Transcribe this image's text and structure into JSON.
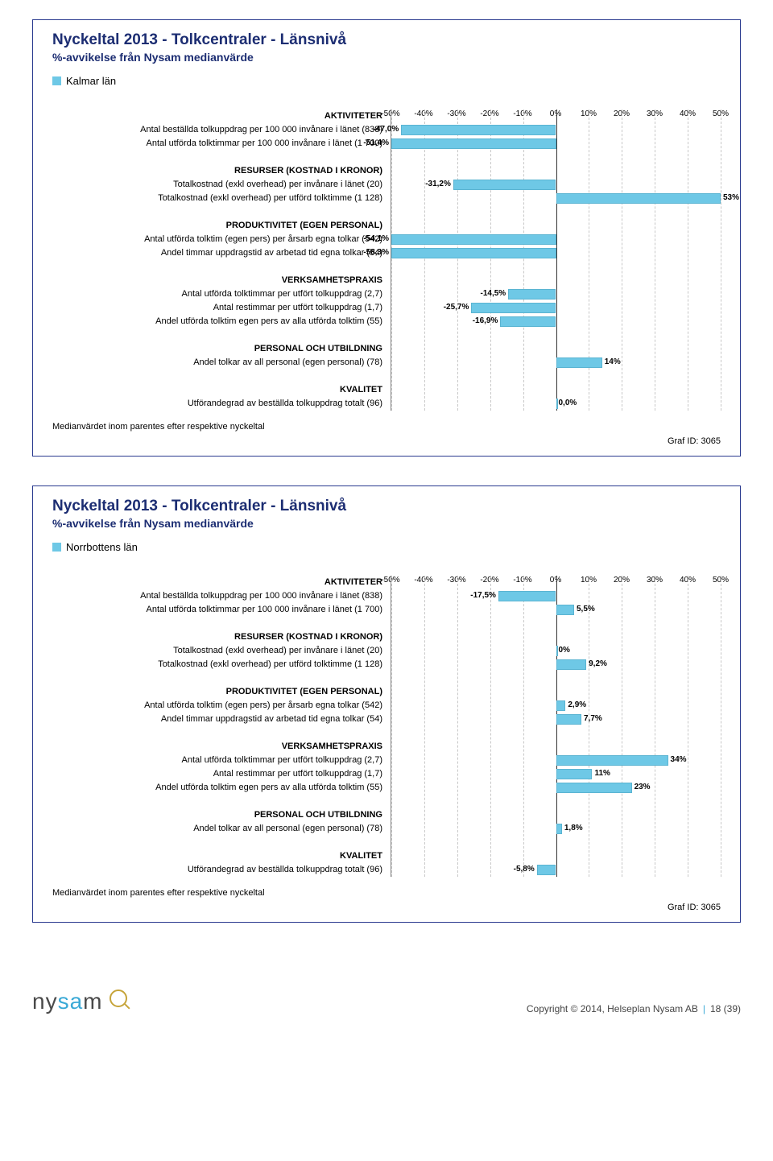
{
  "chart_meta": {
    "title": "Nyckeltal 2013 - Tolkcentraler - Länsnivå",
    "subtitle": "%-avvikelse från Nysam medianvärde",
    "footnote": "Medianvärdet inom parentes efter respektive nyckeltal",
    "graf_id": "Graf ID: 3065",
    "xmin": -50,
    "xmax": 50,
    "xtick_step": 10,
    "bar_color": "#6ec8e6",
    "bar_border": "#5ab4d2",
    "grid_color": "#c8c8c8",
    "axis_color": "#333",
    "label_fontsize": 11,
    "value_fontsize": 10,
    "title_color": "#1c2d72"
  },
  "sections": [
    {
      "heading": "AKTIVITETER",
      "metrics": [
        {
          "label": "Antal beställda tolkuppdrag per 100 000 invånare i länet (838)"
        },
        {
          "label": "Antal utförda tolktimmar per 100 000 invånare i länet (1 700)"
        }
      ]
    },
    {
      "heading": "RESURSER (KOSTNAD I KRONOR)",
      "metrics": [
        {
          "label": "Totalkostnad (exkl overhead) per invånare i länet (20)"
        },
        {
          "label": "Totalkostnad (exkl overhead) per utförd tolktimme (1 128)"
        }
      ]
    },
    {
      "heading": "PRODUKTIVITET (EGEN PERSONAL)",
      "metrics": [
        {
          "label": "Antal utförda tolktim (egen pers) per årsarb egna tolkar (542)"
        },
        {
          "label": "Andel timmar uppdragstid av arbetad tid egna tolkar (54)"
        }
      ]
    },
    {
      "heading": "VERKSAMHETSPRAXIS",
      "metrics": [
        {
          "label": "Antal utförda tolktimmar per utfört tolkuppdrag (2,7)"
        },
        {
          "label": "Antal restimmar per utfört tolkuppdrag (1,7)"
        },
        {
          "label": "Andel utförda tolktim egen pers av alla utförda tolktim (55)"
        }
      ]
    },
    {
      "heading": "PERSONAL OCH UTBILDNING",
      "metrics": [
        {
          "label": "Andel tolkar av all personal (egen personal) (78)"
        }
      ]
    },
    {
      "heading": "KVALITET",
      "metrics": [
        {
          "label": "Utförandegrad av beställda tolkuppdrag totalt (96)"
        }
      ]
    }
  ],
  "charts": [
    {
      "legend": "Kalmar län",
      "values": [
        [
          "-47,0%",
          -47.0
        ],
        [
          "-51,4%",
          -51.4
        ],
        [
          "-31,2%",
          -31.2
        ],
        [
          "53%",
          53
        ],
        [
          "-54,1%",
          -54.1
        ],
        [
          "-58,3%",
          -58.3
        ],
        [
          "-14,5%",
          -14.5
        ],
        [
          "-25,7%",
          -25.7
        ],
        [
          "-16,9%",
          -16.9
        ],
        [
          "14%",
          14
        ],
        [
          "0,0%",
          0.0
        ]
      ]
    },
    {
      "legend": "Norrbottens län",
      "values": [
        [
          "-17,5%",
          -17.5
        ],
        [
          "5,5%",
          5.5
        ],
        [
          "0%",
          0
        ],
        [
          "9,2%",
          9.2
        ],
        [
          "2,9%",
          2.9
        ],
        [
          "7,7%",
          7.7
        ],
        [
          "34%",
          34
        ],
        [
          "11%",
          11
        ],
        [
          "23%",
          23
        ],
        [
          "1,8%",
          1.8
        ],
        [
          "-5,8%",
          -5.8
        ]
      ]
    }
  ],
  "logo": {
    "name_left": "ny",
    "name_mid": "sa",
    "name_right": "m"
  },
  "footer": {
    "copyright": "Copyright © 2014, Helseplan Nysam AB",
    "page": "18 (39)"
  }
}
